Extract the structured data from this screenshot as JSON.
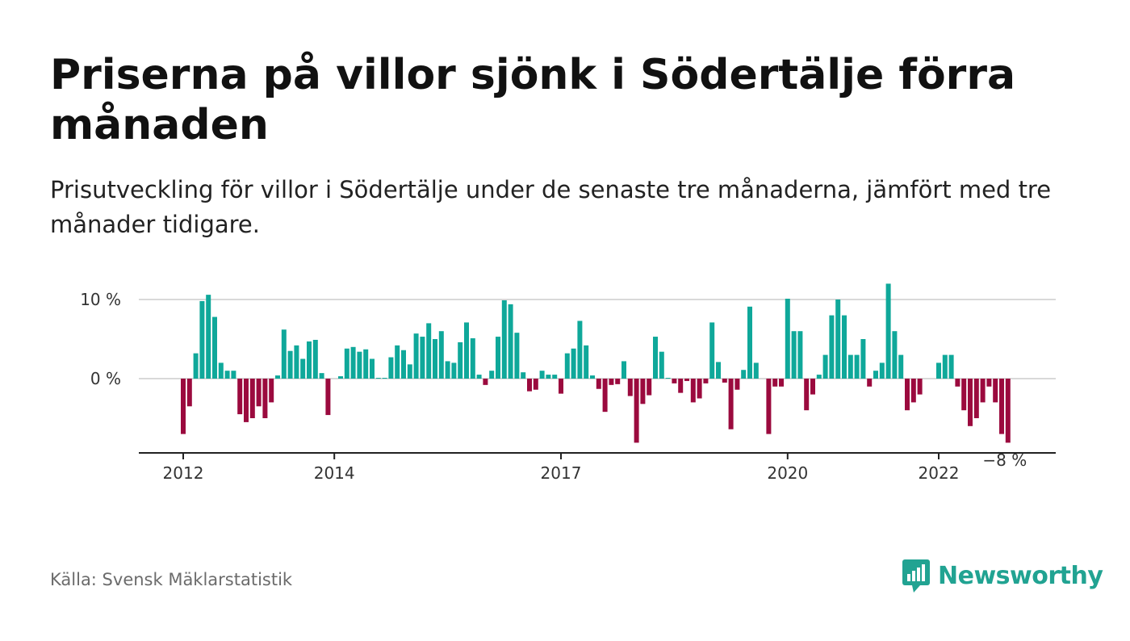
{
  "title": "Priserna på villor sjönk i Södertälje förra månaden",
  "subtitle": "Prisutveckling för villor i Södertälje under de senaste tre månaderna, jämfört med tre månader tidigare.",
  "source": "Källa: Svensk Mäklarstatistik",
  "brand": "Newsworthy",
  "colors": {
    "positive": "#0fa89a",
    "negative": "#9b0a3e",
    "grid": "#d9d9d9",
    "axis": "#222222",
    "brand": "#21a392"
  },
  "chart_data": {
    "type": "bar",
    "ylim": [
      -9,
      12
    ],
    "yticks": [
      {
        "value": 0,
        "label": "0 %"
      },
      {
        "value": 10,
        "label": "10 %"
      }
    ],
    "xticks": [
      {
        "index": 0,
        "label": "2012"
      },
      {
        "index": 24,
        "label": "2014"
      },
      {
        "index": 60,
        "label": "2017"
      },
      {
        "index": 96,
        "label": "2020"
      },
      {
        "index": 120,
        "label": "2022"
      }
    ],
    "last_value_label": "−8 %",
    "values": [
      -7,
      -3.5,
      3.2,
      9.8,
      10.6,
      7.8,
      2,
      1,
      1,
      -4.5,
      -5.5,
      -5,
      -3.5,
      -5,
      -3,
      0.4,
      6.2,
      3.5,
      4.2,
      2.5,
      4.7,
      4.9,
      0.7,
      -4.6,
      0,
      0.3,
      3.8,
      4,
      3.4,
      3.7,
      2.5,
      0.1,
      0.1,
      2.7,
      4.2,
      3.6,
      1.8,
      5.7,
      5.3,
      7,
      5,
      6,
      2.2,
      2,
      4.6,
      7.1,
      5.1,
      0.5,
      -0.8,
      1,
      5.3,
      9.9,
      9.4,
      5.8,
      0.8,
      -1.6,
      -1.4,
      1,
      0.5,
      0.5,
      -1.9,
      3.2,
      3.8,
      7.3,
      4.2,
      0.4,
      -1.3,
      -4.2,
      -0.8,
      -0.7,
      2.2,
      -2.2,
      -8.1,
      -3.2,
      -2.1,
      5.3,
      3.4,
      0.1,
      -0.6,
      -1.8,
      -0.3,
      -3,
      -2.5,
      -0.6,
      7.1,
      2.1,
      -0.5,
      -6.4,
      -1.4,
      1.1,
      9.1,
      2,
      0,
      -7,
      -1,
      -1,
      10.1,
      6,
      6,
      -4,
      -2,
      0.5,
      3,
      8,
      10,
      8,
      3,
      3,
      5,
      -1,
      1,
      2,
      12,
      6,
      3,
      -4,
      -3,
      -2,
      0,
      0,
      2,
      3,
      3,
      -1,
      -4,
      -6,
      -5,
      -3,
      -1,
      -3,
      -7,
      -8.1
    ]
  }
}
